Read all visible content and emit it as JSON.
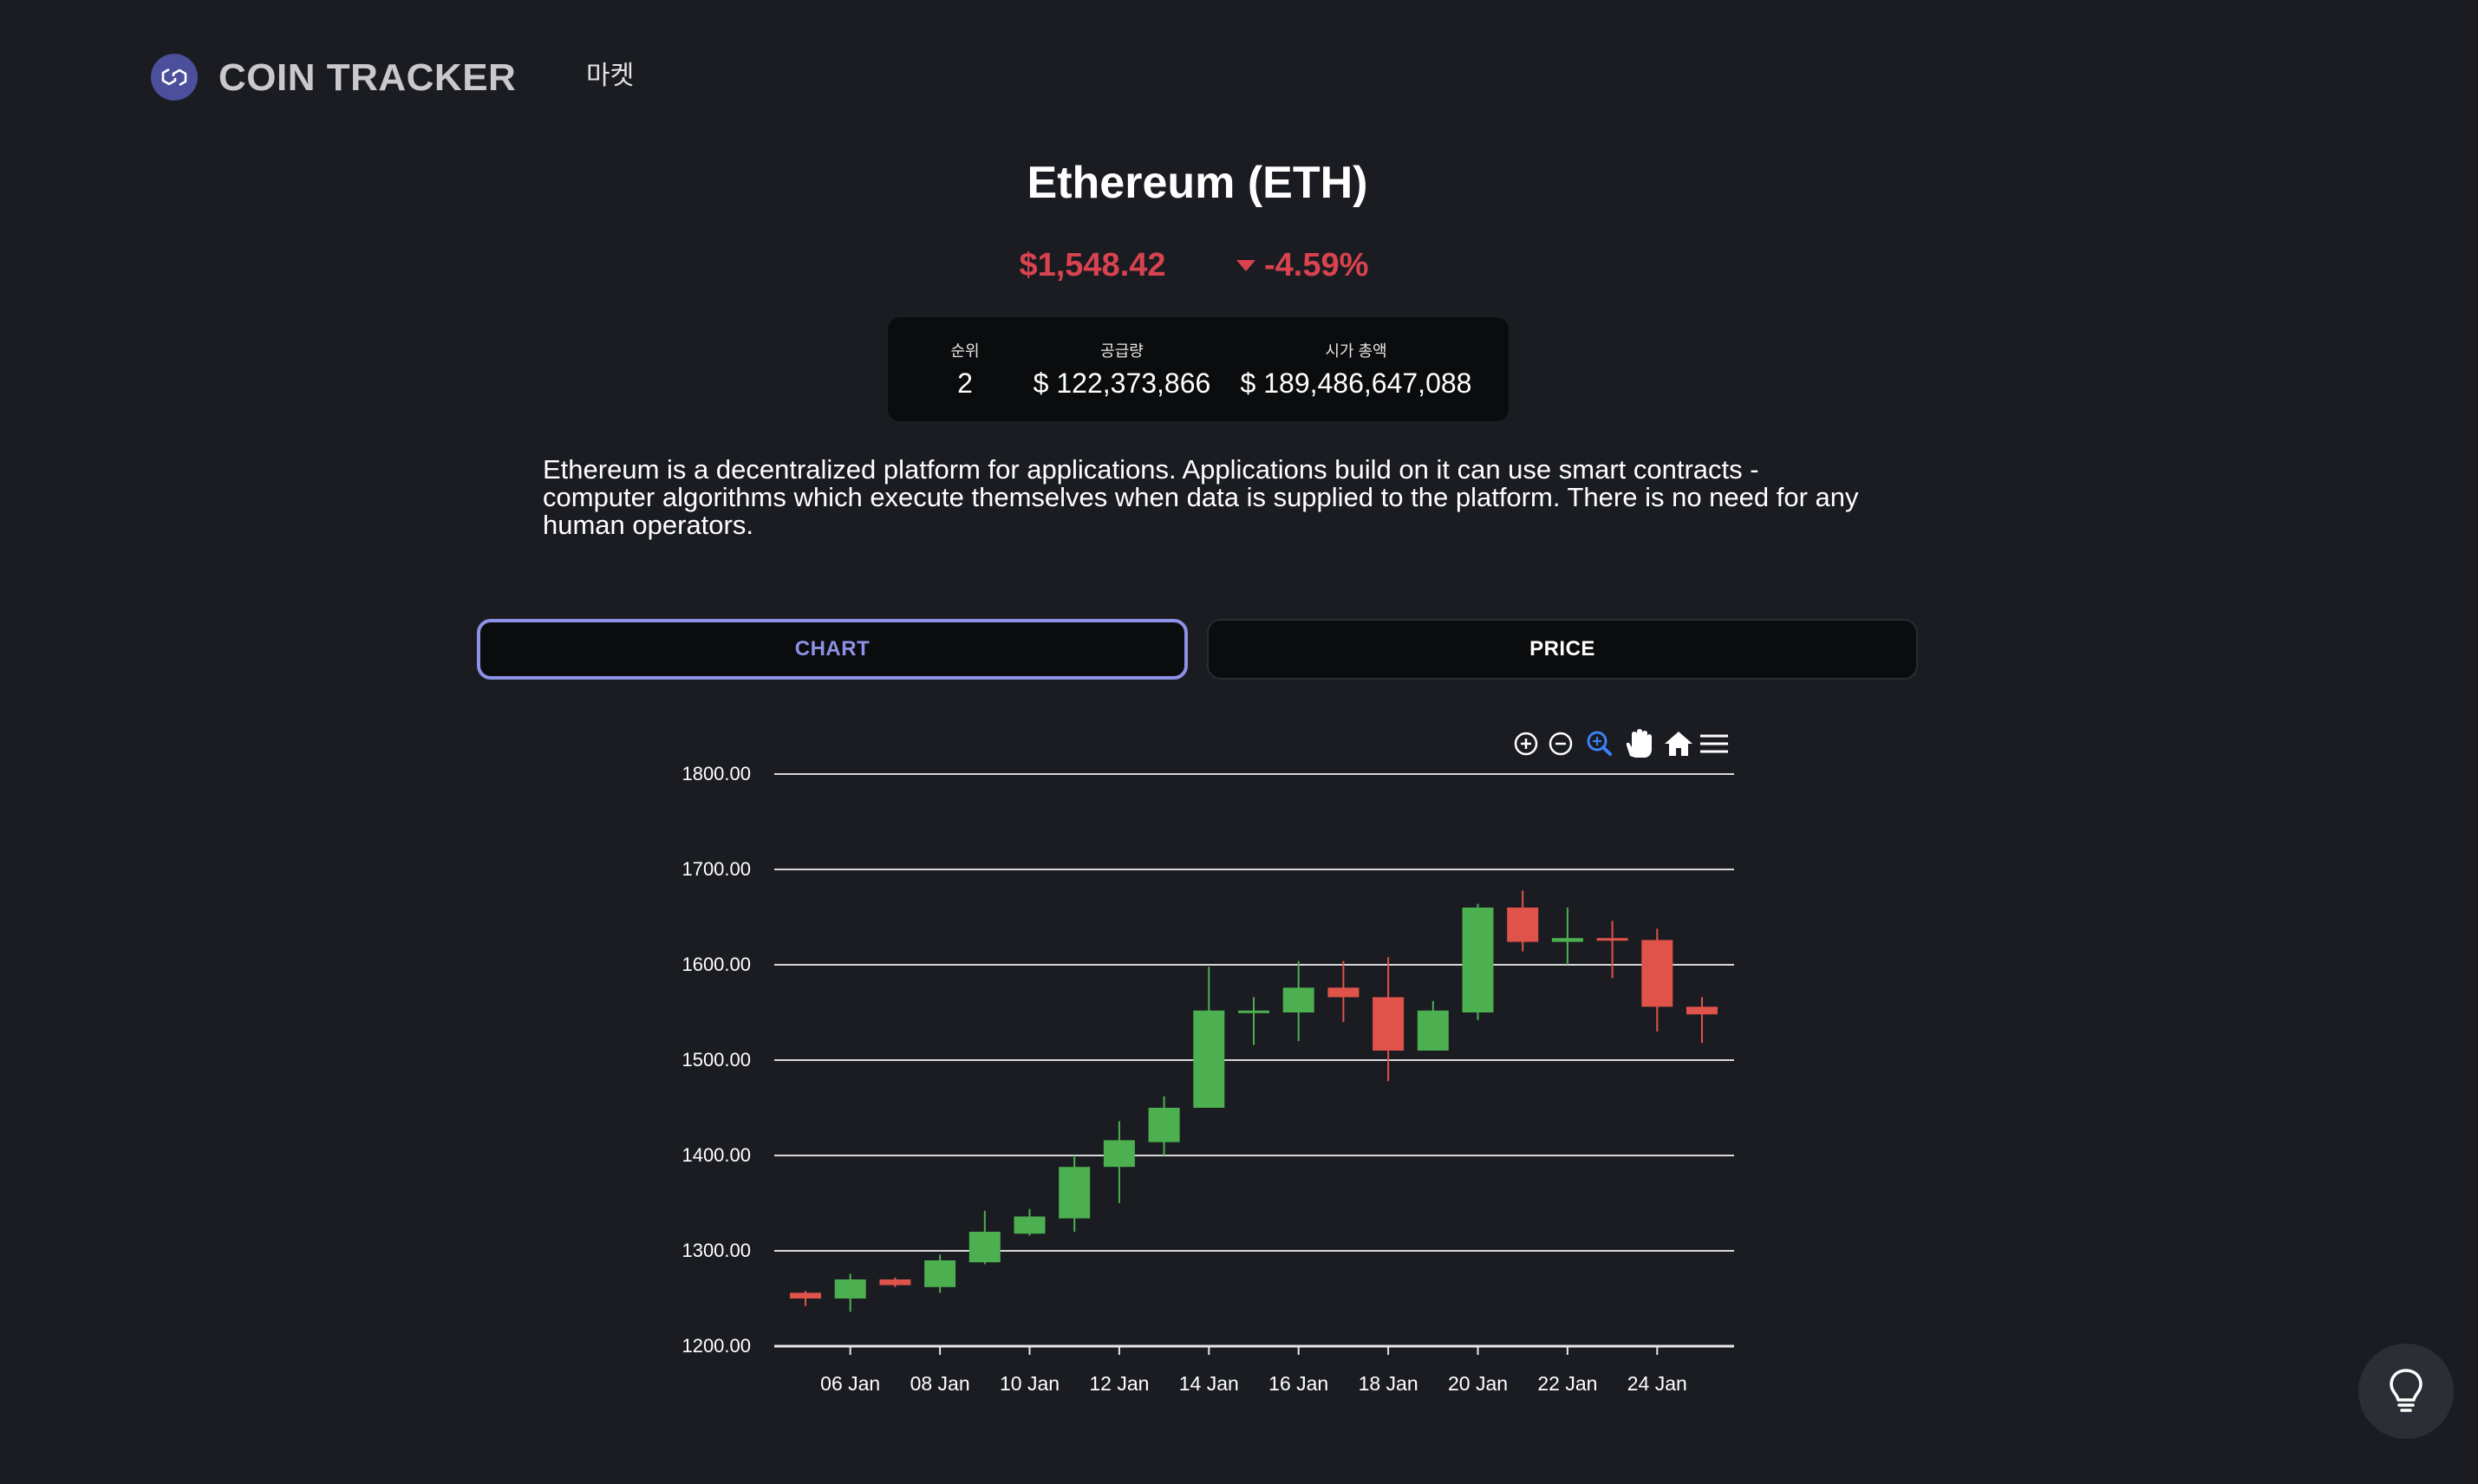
{
  "header": {
    "brand": "COIN TRACKER",
    "nav_market": "마켓"
  },
  "coin": {
    "title": "Ethereum (ETH)",
    "price": "$1,548.42",
    "change": "-4.59%",
    "change_direction_icon": "caret-down-icon",
    "negative_color": "#d9434f"
  },
  "stats": [
    {
      "label": "순위",
      "value": "2"
    },
    {
      "label": "공급량",
      "value": "$ 122,373,866"
    },
    {
      "label": "시가 총액",
      "value": "$ 189,486,647,088"
    }
  ],
  "description": "Ethereum is a decentralized platform for applications. Applications build on it can use smart contracts - computer algorithms which execute themselves when data is supplied to the platform. There is no need for any human operators.",
  "tabs": [
    {
      "label": "CHART",
      "active": true
    },
    {
      "label": "PRICE",
      "active": false
    }
  ],
  "toolbar": [
    "zoom-in-icon",
    "zoom-out-icon",
    "zoom-select-icon",
    "pan-hand-icon",
    "reset-home-icon",
    "menu-icon"
  ],
  "colors": {
    "accent": "#8e92e6",
    "up": "#4caf50",
    "down": "#e0534a",
    "background": "#1a1c21"
  },
  "chart_data": {
    "type": "candlestick",
    "ylim": [
      1200,
      1800
    ],
    "yticks": [
      "1200.00",
      "1300.00",
      "1400.00",
      "1500.00",
      "1600.00",
      "1700.00",
      "1800.00"
    ],
    "xticks": [
      "06 Jan",
      "08 Jan",
      "10 Jan",
      "12 Jan",
      "14 Jan",
      "16 Jan",
      "18 Jan",
      "20 Jan",
      "22 Jan",
      "24 Jan"
    ],
    "grid": true,
    "candles": [
      {
        "date": "05 Jan",
        "open": 1256,
        "high": 1258,
        "low": 1242,
        "close": 1250
      },
      {
        "date": "06 Jan",
        "open": 1250,
        "high": 1276,
        "low": 1236,
        "close": 1270
      },
      {
        "date": "07 Jan",
        "open": 1270,
        "high": 1272,
        "low": 1262,
        "close": 1264
      },
      {
        "date": "08 Jan",
        "open": 1262,
        "high": 1296,
        "low": 1256,
        "close": 1290
      },
      {
        "date": "09 Jan",
        "open": 1288,
        "high": 1342,
        "low": 1286,
        "close": 1320
      },
      {
        "date": "10 Jan",
        "open": 1318,
        "high": 1344,
        "low": 1316,
        "close": 1336
      },
      {
        "date": "11 Jan",
        "open": 1334,
        "high": 1400,
        "low": 1320,
        "close": 1388
      },
      {
        "date": "12 Jan",
        "open": 1388,
        "high": 1436,
        "low": 1350,
        "close": 1416
      },
      {
        "date": "13 Jan",
        "open": 1414,
        "high": 1462,
        "low": 1400,
        "close": 1450
      },
      {
        "date": "14 Jan",
        "open": 1450,
        "high": 1598,
        "low": 1450,
        "close": 1552
      },
      {
        "date": "15 Jan",
        "open": 1550,
        "high": 1566,
        "low": 1516,
        "close": 1552
      },
      {
        "date": "16 Jan",
        "open": 1550,
        "high": 1604,
        "low": 1520,
        "close": 1576
      },
      {
        "date": "17 Jan",
        "open": 1576,
        "high": 1604,
        "low": 1540,
        "close": 1566
      },
      {
        "date": "18 Jan",
        "open": 1566,
        "high": 1608,
        "low": 1478,
        "close": 1510
      },
      {
        "date": "19 Jan",
        "open": 1510,
        "high": 1562,
        "low": 1510,
        "close": 1552
      },
      {
        "date": "20 Jan",
        "open": 1550,
        "high": 1664,
        "low": 1542,
        "close": 1660
      },
      {
        "date": "21 Jan",
        "open": 1660,
        "high": 1678,
        "low": 1614,
        "close": 1624
      },
      {
        "date": "22 Jan",
        "open": 1624,
        "high": 1660,
        "low": 1600,
        "close": 1628
      },
      {
        "date": "23 Jan",
        "open": 1628,
        "high": 1646,
        "low": 1586,
        "close": 1626
      },
      {
        "date": "24 Jan",
        "open": 1626,
        "high": 1638,
        "low": 1530,
        "close": 1556
      },
      {
        "date": "25 Jan",
        "open": 1556,
        "high": 1566,
        "low": 1518,
        "close": 1548
      }
    ]
  }
}
